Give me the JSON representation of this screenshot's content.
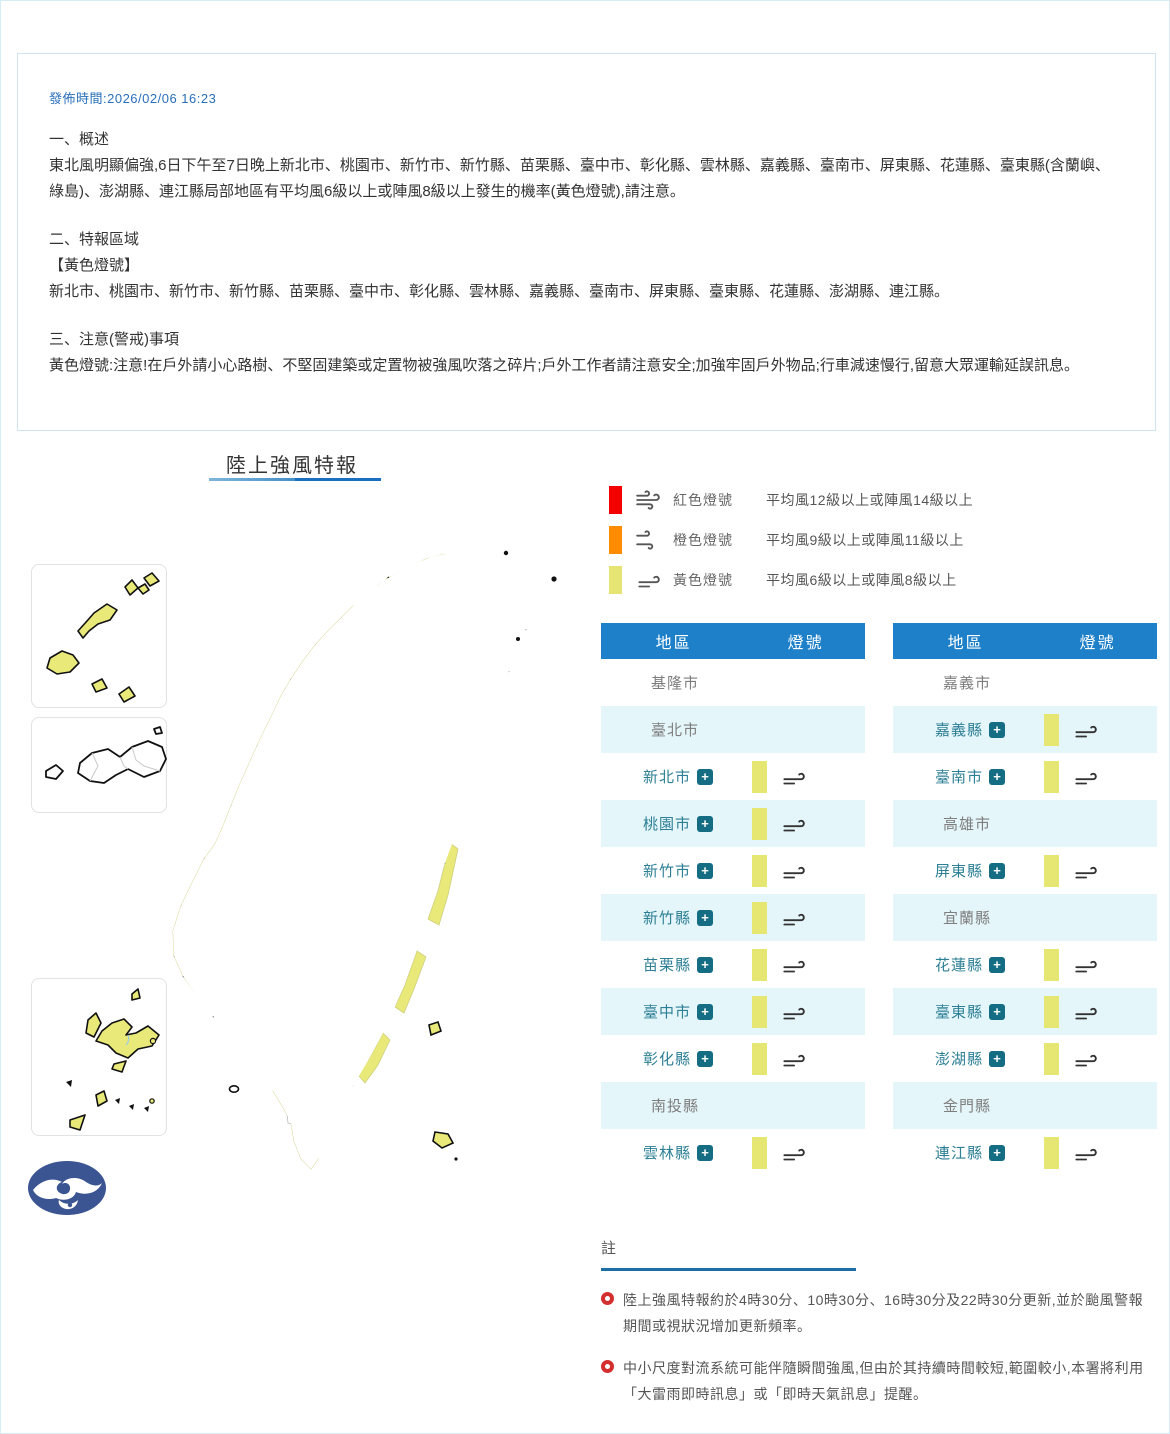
{
  "info_box": {
    "published": "發佈時間:2026/02/06 16:23",
    "sections": [
      {
        "heading": "一、概述",
        "body": "東北風明顯偏強,6日下午至7日晚上新北市、桃園市、新竹市、新竹縣、苗栗縣、臺中市、彰化縣、雲林縣、嘉義縣、臺南市、屏東縣、花蓮縣、臺東縣(含蘭嶼、綠島)、澎湖縣、連江縣局部地區有平均風6級以上或陣風8級以上發生的機率(黃色燈號),請注意。"
      },
      {
        "heading": "二、特報區域",
        "sub_heading": "【黃色燈號】",
        "body": "新北市、桃園市、新竹市、新竹縣、苗栗縣、臺中市、彰化縣、雲林縣、嘉義縣、臺南市、屏東縣、臺東縣、花蓮縣、澎湖縣、連江縣。"
      },
      {
        "heading": "三、注意(警戒)事項",
        "body": "黃色燈號:注意!在戶外請小心路樹、不堅固建築或定置物被強風吹落之碎片;戶外工作者請注意安全;加強牢固戶外物品;行車減速慢行,留意大眾運輸延誤訊息。"
      }
    ]
  },
  "map": {
    "title": "陸上強風特報",
    "highlight_color": "#e9e97a",
    "logo_name": "cwa-logo"
  },
  "legend": {
    "items": [
      {
        "color": "#f40000",
        "label": "紅色燈號",
        "desc": "平均風12級以上或陣風14級以上",
        "icon": "wind-3-icon"
      },
      {
        "color": "#ff8c00",
        "label": "橙色燈號",
        "desc": "平均風9級以上或陣風11級以上",
        "icon": "wind-2-icon"
      },
      {
        "color": "#e6e472",
        "label": "黃色燈號",
        "desc": "平均風6級以上或陣風8級以上",
        "icon": "wind-1-icon"
      }
    ]
  },
  "tables": {
    "headers": {
      "region": "地區",
      "signal": "燈號"
    },
    "left_rows": [
      {
        "name": "基隆市",
        "active": false
      },
      {
        "name": "臺北市",
        "active": false
      },
      {
        "name": "新北市",
        "active": true
      },
      {
        "name": "桃園市",
        "active": true
      },
      {
        "name": "新竹市",
        "active": true
      },
      {
        "name": "新竹縣",
        "active": true
      },
      {
        "name": "苗栗縣",
        "active": true
      },
      {
        "name": "臺中市",
        "active": true
      },
      {
        "name": "彰化縣",
        "active": true
      },
      {
        "name": "南投縣",
        "active": false
      },
      {
        "name": "雲林縣",
        "active": true
      }
    ],
    "right_rows": [
      {
        "name": "嘉義市",
        "active": false
      },
      {
        "name": "嘉義縣",
        "active": true
      },
      {
        "name": "臺南市",
        "active": true
      },
      {
        "name": "高雄市",
        "active": false
      },
      {
        "name": "屏東縣",
        "active": true
      },
      {
        "name": "宜蘭縣",
        "active": false
      },
      {
        "name": "花蓮縣",
        "active": true
      },
      {
        "name": "臺東縣",
        "active": true
      },
      {
        "name": "澎湖縣",
        "active": true
      },
      {
        "name": "金門縣",
        "active": false
      },
      {
        "name": "連江縣",
        "active": true
      }
    ],
    "signal_level": "黃色燈號"
  },
  "notes": {
    "title": "註",
    "items": [
      "陸上強風特報約於4時30分、10時30分、16時30分及22時30分更新,並於颱風警報期間或視狀況增加更新頻率。",
      "中小尺度對流系統可能伴隨瞬間強風,但由於其持續時間較短,範圍較小,本署將利用「大雷雨即時訊息」或「即時天氣訊息」提醒。"
    ]
  }
}
